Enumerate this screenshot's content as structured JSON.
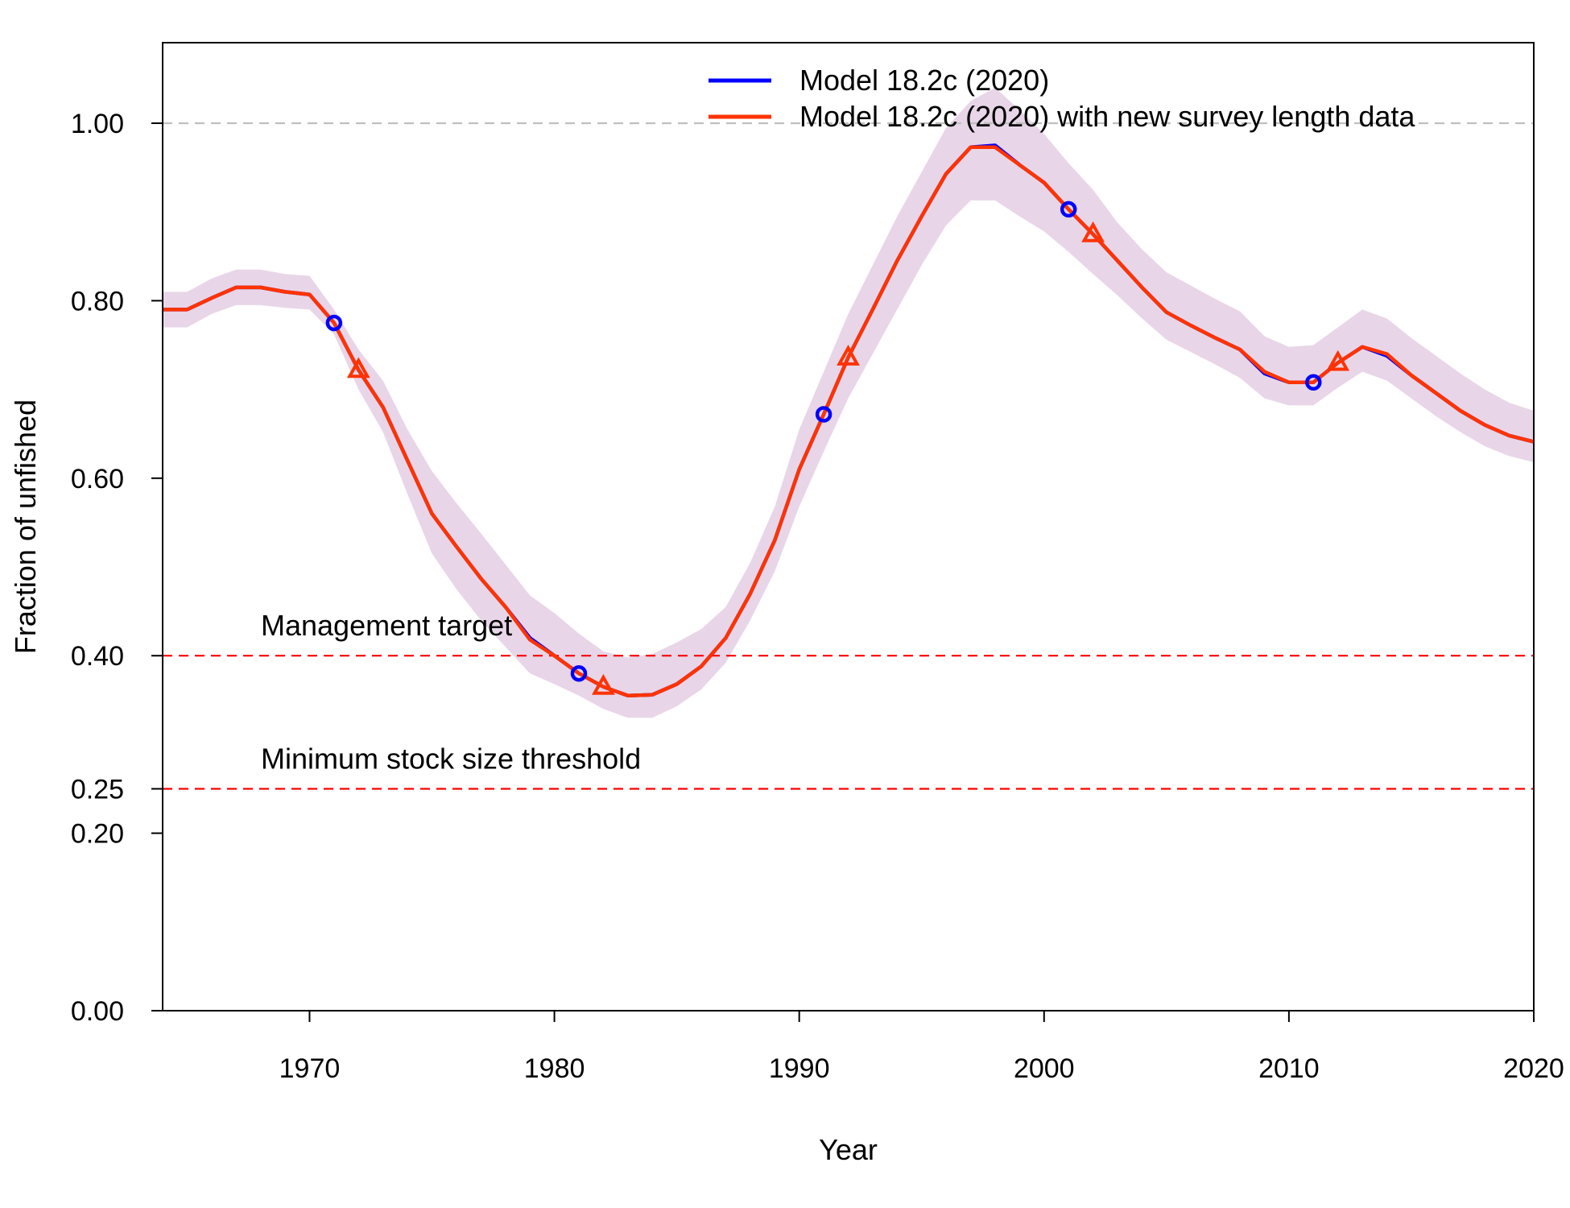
{
  "chart_data": {
    "type": "line",
    "xlabel": "Year",
    "ylabel": "Fraction of unfished",
    "xlim": [
      1964,
      2020
    ],
    "ylim": [
      0,
      1.0
    ],
    "x_ticks": [
      1970,
      1980,
      1990,
      2000,
      2010,
      2020
    ],
    "y_ticks": [
      0.0,
      0.2,
      0.25,
      0.4,
      0.6,
      0.8,
      1.0
    ],
    "y_tick_labels": [
      "0.00",
      "0.20",
      "0.25",
      "0.40",
      "0.60",
      "0.80",
      "1.00"
    ],
    "reference_lines": [
      {
        "y": 1.0,
        "label": "",
        "color": "#bfbfbf",
        "style": "dashed"
      },
      {
        "y": 0.4,
        "label": "Management target",
        "color": "#ff0000",
        "style": "dashed"
      },
      {
        "y": 0.25,
        "label": "Minimum stock size threshold",
        "color": "#ff0000",
        "style": "dashed"
      }
    ],
    "legend_position": "top-right",
    "x": [
      1964,
      1965,
      1966,
      1967,
      1968,
      1969,
      1970,
      1971,
      1972,
      1973,
      1974,
      1975,
      1976,
      1977,
      1978,
      1979,
      1980,
      1981,
      1982,
      1983,
      1984,
      1985,
      1986,
      1987,
      1988,
      1989,
      1990,
      1991,
      1992,
      1993,
      1994,
      1995,
      1996,
      1997,
      1998,
      1999,
      2000,
      2001,
      2002,
      2003,
      2004,
      2005,
      2006,
      2007,
      2008,
      2009,
      2010,
      2011,
      2012,
      2013,
      2014,
      2015,
      2016,
      2017,
      2018,
      2019,
      2020
    ],
    "series": [
      {
        "name": "Model 18.2c (2020)",
        "color": "#0000ff",
        "marker": "circle",
        "marker_x": [
          1971,
          1981,
          1991,
          2001,
          2011
        ],
        "values": [
          0.79,
          0.79,
          0.803,
          0.815,
          0.815,
          0.81,
          0.807,
          0.775,
          0.722,
          0.68,
          0.62,
          0.56,
          0.523,
          0.487,
          0.455,
          0.42,
          0.4,
          0.38,
          0.365,
          0.355,
          0.356,
          0.368,
          0.388,
          0.42,
          0.47,
          0.53,
          0.61,
          0.672,
          0.736,
          0.79,
          0.845,
          0.895,
          0.943,
          0.973,
          0.975,
          0.953,
          0.933,
          0.903,
          0.875,
          0.845,
          0.815,
          0.787,
          0.772,
          0.758,
          0.745,
          0.718,
          0.708,
          0.708,
          0.73,
          0.748,
          0.738,
          0.716,
          0.696,
          0.676,
          0.66,
          0.648,
          0.641
        ]
      },
      {
        "name": "Model 18.2c (2020) with new survey length data",
        "color": "#ff3300",
        "marker": "triangle",
        "marker_x": [
          1972,
          1982,
          1992,
          2002,
          2012
        ],
        "values": [
          0.79,
          0.79,
          0.803,
          0.815,
          0.815,
          0.81,
          0.807,
          0.775,
          0.722,
          0.68,
          0.62,
          0.56,
          0.523,
          0.487,
          0.455,
          0.418,
          0.4,
          0.38,
          0.365,
          0.355,
          0.356,
          0.368,
          0.388,
          0.42,
          0.47,
          0.53,
          0.61,
          0.672,
          0.736,
          0.79,
          0.845,
          0.895,
          0.943,
          0.973,
          0.973,
          0.953,
          0.933,
          0.903,
          0.875,
          0.845,
          0.815,
          0.787,
          0.772,
          0.758,
          0.745,
          0.72,
          0.708,
          0.708,
          0.73,
          0.748,
          0.74,
          0.716,
          0.696,
          0.676,
          0.66,
          0.648,
          0.641
        ]
      }
    ],
    "band": {
      "color": "#e8d6e8",
      "lower": [
        0.77,
        0.77,
        0.785,
        0.795,
        0.795,
        0.792,
        0.79,
        0.762,
        0.7,
        0.652,
        0.582,
        0.515,
        0.475,
        0.44,
        0.41,
        0.38,
        0.368,
        0.355,
        0.34,
        0.33,
        0.33,
        0.343,
        0.362,
        0.392,
        0.44,
        0.495,
        0.568,
        0.63,
        0.69,
        0.74,
        0.79,
        0.84,
        0.885,
        0.913,
        0.913,
        0.895,
        0.878,
        0.855,
        0.83,
        0.806,
        0.78,
        0.756,
        0.742,
        0.728,
        0.713,
        0.69,
        0.682,
        0.682,
        0.702,
        0.72,
        0.71,
        0.69,
        0.67,
        0.652,
        0.636,
        0.625,
        0.618
      ],
      "upper": [
        0.81,
        0.81,
        0.825,
        0.835,
        0.835,
        0.83,
        0.828,
        0.79,
        0.745,
        0.71,
        0.655,
        0.608,
        0.572,
        0.538,
        0.503,
        0.468,
        0.448,
        0.425,
        0.405,
        0.398,
        0.402,
        0.415,
        0.43,
        0.455,
        0.505,
        0.568,
        0.655,
        0.72,
        0.785,
        0.84,
        0.895,
        0.945,
        0.995,
        1.025,
        1.04,
        1.015,
        0.988,
        0.955,
        0.925,
        0.888,
        0.858,
        0.832,
        0.817,
        0.802,
        0.788,
        0.76,
        0.748,
        0.75,
        0.77,
        0.79,
        0.78,
        0.758,
        0.738,
        0.718,
        0.7,
        0.685,
        0.676
      ]
    }
  }
}
